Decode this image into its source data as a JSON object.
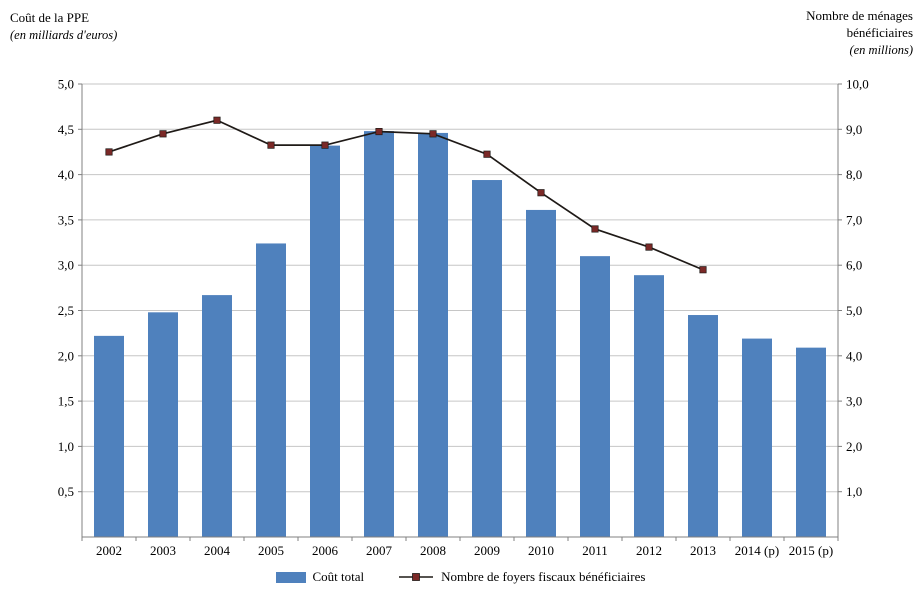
{
  "header": {
    "left_title": "Coût de la PPE",
    "left_subtitle": "(en milliards d'euros)",
    "right_title_line1": "Nombre de ménages",
    "right_title_line2": "bénéficiaires",
    "right_subtitle": "(en millions)"
  },
  "legend": {
    "bar_label": "Coût total",
    "line_label": "Nombre de foyers fiscaux bénéficiaires"
  },
  "colors": {
    "bar": "#4f81bd",
    "line": "#1f1a17",
    "marker": "#7b2927",
    "grid": "#c6c6c6",
    "axis": "#808080"
  },
  "chart_data": {
    "type": "bar",
    "subtype": "bar+line combo, dual axis",
    "categories": [
      "2002",
      "2003",
      "2004",
      "2005",
      "2006",
      "2007",
      "2008",
      "2009",
      "2010",
      "2011",
      "2012",
      "2013",
      "2014 (p)",
      "2015 (p)"
    ],
    "series": [
      {
        "name": "Coût total",
        "type": "bar",
        "axis": "left",
        "values": [
          2.22,
          2.48,
          2.67,
          3.24,
          4.32,
          4.48,
          4.46,
          3.94,
          3.61,
          3.1,
          2.89,
          2.45,
          2.19,
          2.09
        ]
      },
      {
        "name": "Nombre de foyers fiscaux bénéficiaires",
        "type": "line",
        "axis": "right",
        "values": [
          8.5,
          8.9,
          9.2,
          8.65,
          8.65,
          8.95,
          8.9,
          8.45,
          7.6,
          6.8,
          6.4,
          5.9,
          null,
          null
        ]
      }
    ],
    "left_axis": {
      "label": "Coût de la PPE (en milliards d'euros)",
      "min": 0,
      "max": 5,
      "step": 0.5,
      "tick_labels": [
        "0,5",
        "1,0",
        "1,5",
        "2,0",
        "2,5",
        "3,0",
        "3,5",
        "4,0",
        "4,5",
        "5,0"
      ]
    },
    "right_axis": {
      "label": "Nombre de ménages bénéficiaires (en millions)",
      "min": 0,
      "max": 10,
      "step": 1,
      "tick_labels": [
        "1,0",
        "2,0",
        "3,0",
        "4,0",
        "5,0",
        "6,0",
        "7,0",
        "8,0",
        "9,0",
        "10,0"
      ]
    },
    "grid": true,
    "legend_position": "bottom"
  }
}
